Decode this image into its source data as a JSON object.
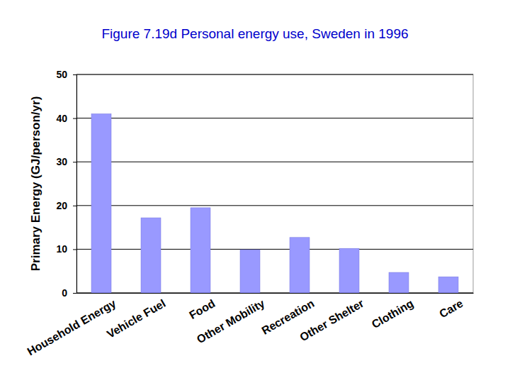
{
  "chart_data": {
    "type": "bar",
    "title": "Figure 7.19d Personal energy use, Sweden in 1996",
    "y_label": "Primary Energy (GJ/person/yr)",
    "categories": [
      "Household Energy",
      "Vehicle Fuel",
      "Food",
      "Other Mobility",
      "Recreation",
      "Other Shelter",
      "Clothing",
      "Care"
    ],
    "values": [
      41,
      17.2,
      19.5,
      9.9,
      12.7,
      10.2,
      4.7,
      3.7
    ],
    "color": "#9999ff",
    "ylim": [
      0,
      50
    ],
    "yticks": [
      0,
      10,
      20,
      30,
      40,
      50
    ],
    "grid": true
  }
}
